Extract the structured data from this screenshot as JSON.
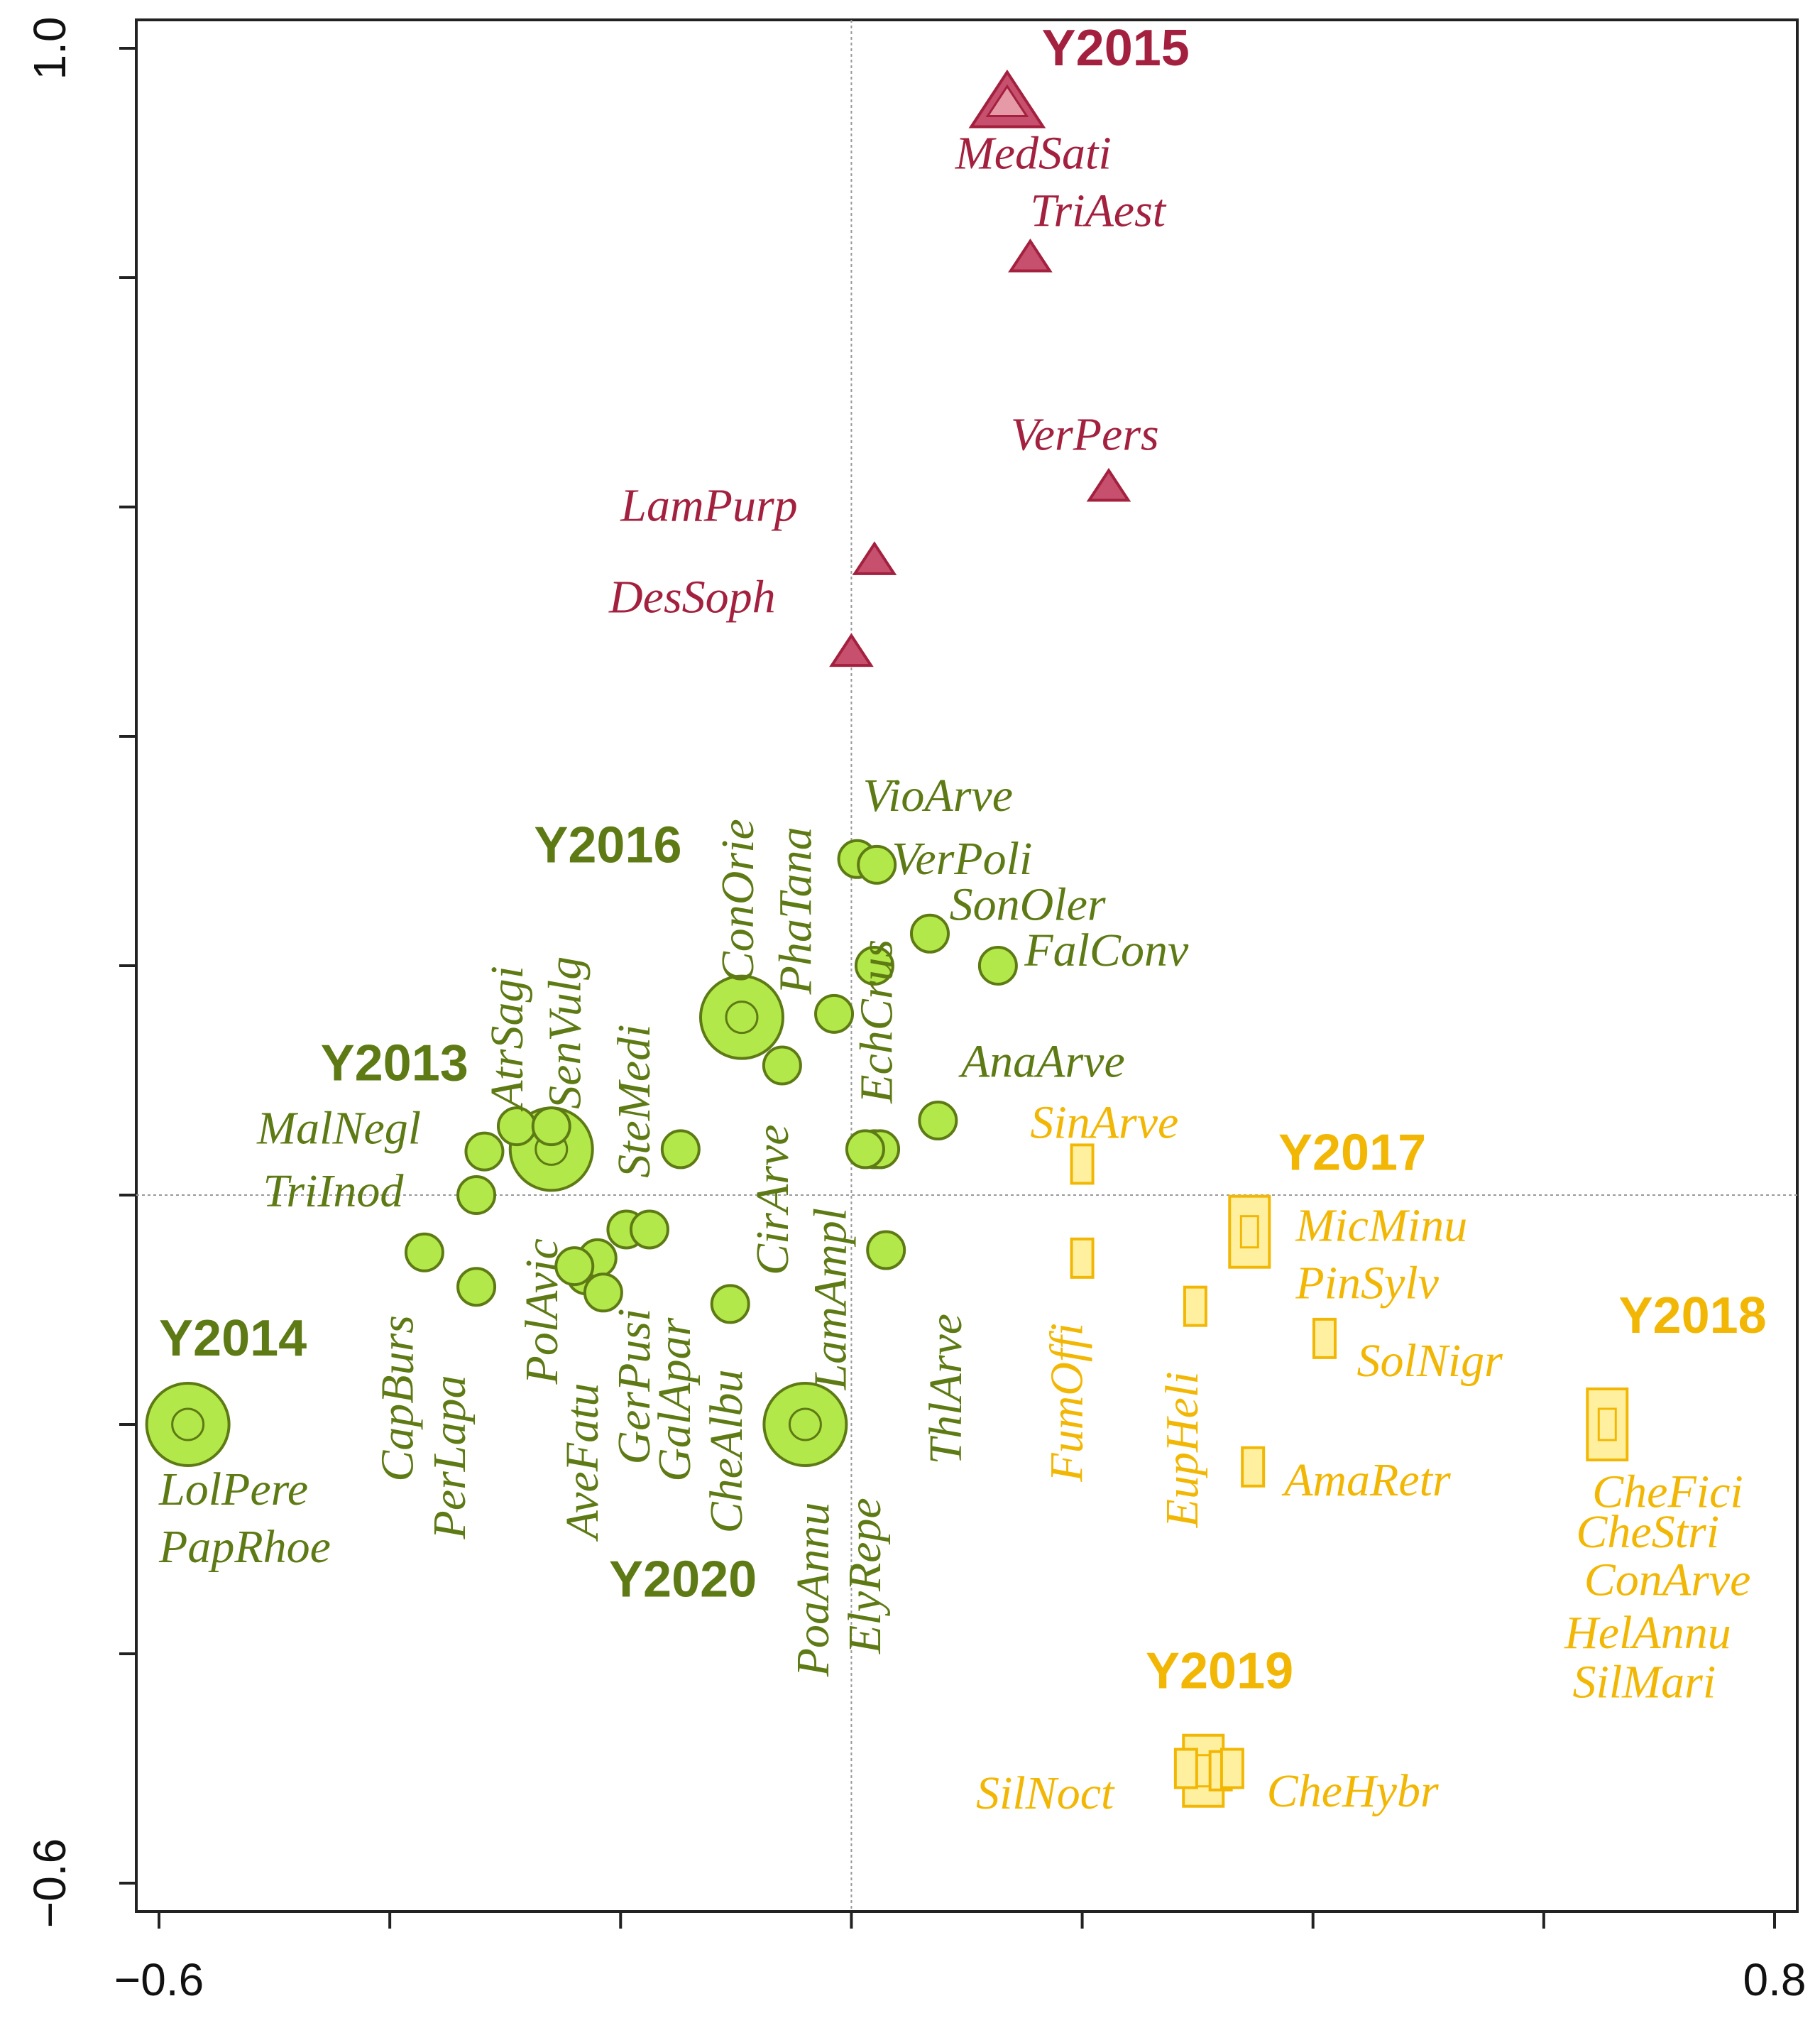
{
  "chart_data": {
    "type": "scatter",
    "title": "",
    "xlabel": "",
    "ylabel": "",
    "xlim": [
      -0.63,
      0.82
    ],
    "ylim": [
      -0.62,
      1.02
    ],
    "x_tick_labels": [
      {
        "value": -0.6,
        "label": "−0.6"
      },
      {
        "value": 0.8,
        "label": "0.8"
      }
    ],
    "y_tick_labels": [
      {
        "value": 1.0,
        "label": "1.0"
      },
      {
        "value": -0.6,
        "label": "−0.6"
      }
    ],
    "x_ticks": [
      -0.6,
      -0.4,
      -0.2,
      0.0,
      0.2,
      0.4,
      0.6,
      0.8
    ],
    "y_ticks": [
      1.0,
      0.8,
      0.6,
      0.4,
      0.2,
      0.0,
      -0.2,
      -0.4,
      -0.6
    ],
    "origin_lines": true,
    "colors": {
      "crimson": "#a3213f",
      "crimson_fill": "#c6506e",
      "crimson_light": "#e69aa8",
      "green": "#5e7a14",
      "green_fill": "#b3e84a",
      "orange": "#f2b705",
      "orange_fill": "#fff0a0",
      "axis": "#222222",
      "guide": "#999999"
    },
    "groups": [
      {
        "name": "crimson",
        "marker": "triangle",
        "years": [
          {
            "label": "Y2015",
            "x": 0.135,
            "y": 0.952,
            "lx": 0.165,
            "ly": 0.985
          }
        ],
        "species": [
          {
            "label": "MedSati",
            "x": 0.135,
            "y": 0.952,
            "lx": 0.09,
            "ly": 0.895
          },
          {
            "label": "TriAest",
            "x": 0.155,
            "y": 0.817,
            "lx": 0.155,
            "ly": 0.845
          },
          {
            "label": "VerPers",
            "x": 0.223,
            "y": 0.617,
            "lx": 0.138,
            "ly": 0.65
          },
          {
            "label": "LamPurp",
            "x": 0.02,
            "y": 0.553,
            "lx": -0.2,
            "ly": 0.588
          },
          {
            "label": "DesSoph",
            "x": 0.0,
            "y": 0.473,
            "lx": -0.21,
            "ly": 0.508
          }
        ]
      },
      {
        "name": "green",
        "marker": "circle",
        "years": [
          {
            "label": "Y2013",
            "x": -0.26,
            "y": 0.04,
            "lx": -0.46,
            "ly": 0.1
          },
          {
            "label": "Y2014",
            "x": -0.575,
            "y": -0.2,
            "lx": -0.6,
            "ly": -0.14
          },
          {
            "label": "Y2016",
            "x": -0.095,
            "y": 0.155,
            "lx": -0.275,
            "ly": 0.29
          },
          {
            "label": "Y2020",
            "x": -0.04,
            "y": -0.2,
            "lx": -0.21,
            "ly": -0.35
          }
        ],
        "species": [
          {
            "label": "MalNegl",
            "x": -0.318,
            "y": 0.038,
            "lx": -0.515,
            "ly": 0.045
          },
          {
            "label": "TriInod",
            "x": -0.325,
            "y": 0.0,
            "lx": -0.51,
            "ly": -0.01
          },
          {
            "label": "AtrSagi",
            "x": -0.29,
            "y": 0.06,
            "lx": -0.285,
            "ly": 0.075,
            "rot": true
          },
          {
            "label": "SenVulg",
            "x": -0.26,
            "y": 0.06,
            "lx": -0.235,
            "ly": 0.075,
            "rot": true
          },
          {
            "label": "SteMedi",
            "x": -0.148,
            "y": 0.04,
            "lx": -0.175,
            "ly": 0.015,
            "rot": true
          },
          {
            "label": "ConOrie",
            "x": -0.095,
            "y": 0.155,
            "lx": -0.085,
            "ly": 0.185,
            "rot": true
          },
          {
            "label": "PhaTana",
            "x": -0.015,
            "y": 0.158,
            "lx": -0.035,
            "ly": 0.175,
            "rot": true
          },
          {
            "label": "VioArve",
            "x": 0.005,
            "y": 0.293,
            "lx": 0.01,
            "ly": 0.335
          },
          {
            "label": "VerPoli",
            "x": 0.022,
            "y": 0.288,
            "lx": 0.035,
            "ly": 0.28
          },
          {
            "label": "SonOler",
            "x": 0.068,
            "y": 0.228,
            "lx": 0.085,
            "ly": 0.24
          },
          {
            "label": "FalConv",
            "x": 0.127,
            "y": 0.2,
            "lx": 0.15,
            "ly": 0.2
          },
          {
            "label": "EchCrus",
            "x": 0.02,
            "y": 0.2,
            "lx": 0.035,
            "ly": 0.08,
            "rot": true
          },
          {
            "label": "AnaArve",
            "x": 0.075,
            "y": 0.065,
            "lx": 0.095,
            "ly": 0.103
          },
          {
            "label": "CirArve",
            "x": -0.06,
            "y": 0.113,
            "lx": -0.055,
            "ly": -0.07,
            "rot": true
          },
          {
            "label": "LamAmpl",
            "x": 0.02,
            "y": 0.04,
            "lx": -0.005,
            "ly": -0.17,
            "rot": true
          },
          {
            "label": "ThlArve",
            "x": 0.03,
            "y": -0.048,
            "lx": 0.095,
            "ly": -0.235,
            "rot": true
          },
          {
            "label": "PolAvic",
            "x": -0.195,
            "y": -0.03,
            "lx": -0.255,
            "ly": -0.165,
            "rot": true
          },
          {
            "label": "CapBurs",
            "x": -0.37,
            "y": -0.05,
            "lx": -0.38,
            "ly": -0.25,
            "rot": true
          },
          {
            "label": "PerLapa",
            "x": -0.325,
            "y": -0.08,
            "lx": -0.335,
            "ly": -0.3,
            "rot": true
          },
          {
            "label": "AveFatu",
            "x": -0.23,
            "y": -0.07,
            "lx": -0.22,
            "ly": -0.3,
            "rot": true
          },
          {
            "label": "GerPusi",
            "x": -0.22,
            "y": -0.055,
            "lx": -0.175,
            "ly": -0.235,
            "rot": true
          },
          {
            "label": "GalApar",
            "x": -0.215,
            "y": -0.085,
            "lx": -0.14,
            "ly": -0.25,
            "rot": true
          },
          {
            "label": "CheAlbu",
            "x": -0.105,
            "y": -0.095,
            "lx": -0.095,
            "ly": -0.295,
            "rot": true
          },
          {
            "label": "PoaAnnu",
            "x": -0.04,
            "y": -0.2,
            "lx": -0.02,
            "ly": -0.42,
            "rot": true
          },
          {
            "label": "ElyRepe",
            "x": 0.03,
            "y": -0.048,
            "lx": 0.025,
            "ly": -0.4,
            "rot": true
          },
          {
            "label": "LolPere",
            "x": -0.575,
            "y": -0.2,
            "lx": -0.6,
            "ly": -0.27
          },
          {
            "label": "PapRhoe",
            "x": -0.575,
            "y": -0.2,
            "lx": -0.6,
            "ly": -0.32
          }
        ],
        "extra_points": [
          {
            "x": -0.175,
            "y": -0.03
          },
          {
            "x": -0.24,
            "y": -0.062
          },
          {
            "x": 0.025,
            "y": 0.04
          },
          {
            "x": 0.012,
            "y": 0.04
          }
        ]
      },
      {
        "name": "orange",
        "marker": "square",
        "years": [
          {
            "label": "Y2017",
            "x": 0.345,
            "y": -0.032,
            "lx": 0.37,
            "ly": 0.022
          },
          {
            "label": "Y2018",
            "x": 0.655,
            "y": -0.2,
            "lx": 0.665,
            "ly": -0.12
          },
          {
            "label": "Y2019",
            "x": 0.305,
            "y": -0.502,
            "lx": 0.255,
            "ly": -0.43
          }
        ],
        "species": [
          {
            "label": "SinArve",
            "x": 0.2,
            "y": 0.027,
            "lx": 0.155,
            "ly": 0.05
          },
          {
            "label": "MicMinu",
            "x": 0.345,
            "y": -0.032,
            "lx": 0.385,
            "ly": -0.04
          },
          {
            "label": "PinSylv",
            "x": 0.345,
            "y": -0.032,
            "lx": 0.385,
            "ly": -0.09
          },
          {
            "label": "SolNigr",
            "x": 0.41,
            "y": -0.125,
            "lx": 0.438,
            "ly": -0.158
          },
          {
            "label": "FumOffi",
            "x": 0.2,
            "y": -0.055,
            "lx": 0.2,
            "ly": -0.25,
            "rot": true
          },
          {
            "label": "EupHeli",
            "x": 0.298,
            "y": -0.097,
            "lx": 0.3,
            "ly": -0.29,
            "rot": true
          },
          {
            "label": "AmaRetr",
            "x": 0.348,
            "y": -0.237,
            "lx": 0.375,
            "ly": -0.262
          },
          {
            "label": "CheFici",
            "x": 0.655,
            "y": -0.2,
            "lx": 0.642,
            "ly": -0.272
          },
          {
            "label": "CheStri",
            "x": 0.655,
            "y": -0.2,
            "lx": 0.628,
            "ly": -0.307
          },
          {
            "label": "ConArve",
            "x": 0.655,
            "y": -0.2,
            "lx": 0.635,
            "ly": -0.349
          },
          {
            "label": "HelAnnu",
            "x": 0.655,
            "y": -0.2,
            "lx": 0.618,
            "ly": -0.395
          },
          {
            "label": "SilMari",
            "x": 0.655,
            "y": -0.2,
            "lx": 0.625,
            "ly": -0.438
          },
          {
            "label": "SilNoct",
            "x": 0.305,
            "y": -0.502,
            "lx": 0.108,
            "ly": -0.535
          },
          {
            "label": "CheHybr",
            "x": 0.32,
            "y": -0.502,
            "lx": 0.36,
            "ly": -0.533
          }
        ],
        "extra_points": [
          {
            "x": 0.33,
            "y": -0.5
          },
          {
            "x": 0.29,
            "y": -0.5
          }
        ]
      }
    ]
  }
}
